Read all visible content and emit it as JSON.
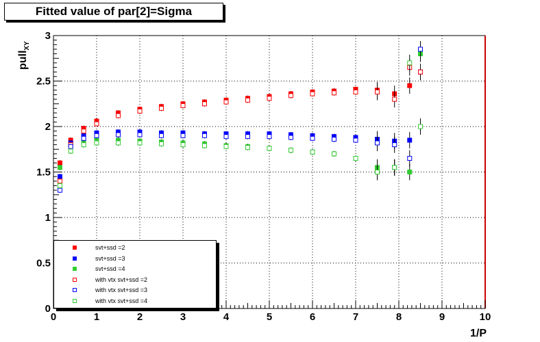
{
  "chart_data": {
    "type": "scatter",
    "title": "Fitted value of par[2]=Sigma",
    "xlabel": "1/P",
    "ylabel": "pull",
    "ylabel_sub": "XY",
    "xlim": [
      0,
      10
    ],
    "ylim": [
      0,
      3
    ],
    "x_ticks": [
      "0",
      "1",
      "2",
      "3",
      "4",
      "5",
      "6",
      "7",
      "8",
      "9",
      "10"
    ],
    "y_ticks": [
      "0",
      "0.5",
      "1",
      "1.5",
      "2",
      "2.5",
      "3"
    ],
    "grid": true,
    "legend_position": "bottom-left",
    "x": [
      0.15,
      0.4,
      0.7,
      1.0,
      1.5,
      2.0,
      2.5,
      3.0,
      3.5,
      4.0,
      4.5,
      5.0,
      5.5,
      6.0,
      6.5,
      7.0,
      7.5,
      7.9,
      8.25,
      8.5
    ],
    "series": [
      {
        "name": "svt+ssd =2",
        "color": "#ff0000",
        "filled": true,
        "values": [
          1.6,
          1.85,
          1.98,
          2.06,
          2.15,
          2.19,
          2.22,
          2.25,
          2.27,
          2.29,
          2.31,
          2.33,
          2.36,
          2.38,
          2.39,
          2.41,
          2.4,
          2.36,
          2.45,
          2.6
        ]
      },
      {
        "name": "svt+ssd =3",
        "color": "#0000ff",
        "filled": true,
        "values": [
          1.45,
          1.82,
          1.9,
          1.93,
          1.94,
          1.94,
          1.93,
          1.93,
          1.92,
          1.92,
          1.92,
          1.92,
          1.91,
          1.9,
          1.89,
          1.88,
          1.86,
          1.84,
          1.85,
          2.6
        ]
      },
      {
        "name": "svt+ssd =4",
        "color": "#33cc33",
        "filled": true,
        "values": [
          1.55,
          1.8,
          1.84,
          1.85,
          1.85,
          1.84,
          1.83,
          1.82,
          1.81,
          1.79,
          1.78,
          1.76,
          1.74,
          1.72,
          1.7,
          1.65,
          1.55,
          1.55,
          1.5,
          2.8
        ]
      },
      {
        "name": "with vtx svt+ssd =2",
        "color": "#ff0000",
        "filled": false,
        "values": [
          1.4,
          1.8,
          1.95,
          2.03,
          2.12,
          2.17,
          2.2,
          2.23,
          2.25,
          2.27,
          2.29,
          2.31,
          2.34,
          2.36,
          2.37,
          2.38,
          2.38,
          2.3,
          2.65,
          2.6
        ]
      },
      {
        "name": "with vtx svt+ssd =3",
        "color": "#0000ff",
        "filled": false,
        "values": [
          1.3,
          1.78,
          1.87,
          1.9,
          1.91,
          1.91,
          1.9,
          1.9,
          1.9,
          1.89,
          1.89,
          1.89,
          1.88,
          1.87,
          1.86,
          1.85,
          1.82,
          1.8,
          1.65,
          2.85
        ]
      },
      {
        "name": "with vtx svt+ssd =4",
        "color": "#33cc33",
        "filled": false,
        "values": [
          1.35,
          1.73,
          1.8,
          1.82,
          1.82,
          1.82,
          1.81,
          1.8,
          1.79,
          1.78,
          1.77,
          1.76,
          1.74,
          1.72,
          1.7,
          1.65,
          1.5,
          1.55,
          2.7,
          2.0
        ]
      }
    ]
  }
}
